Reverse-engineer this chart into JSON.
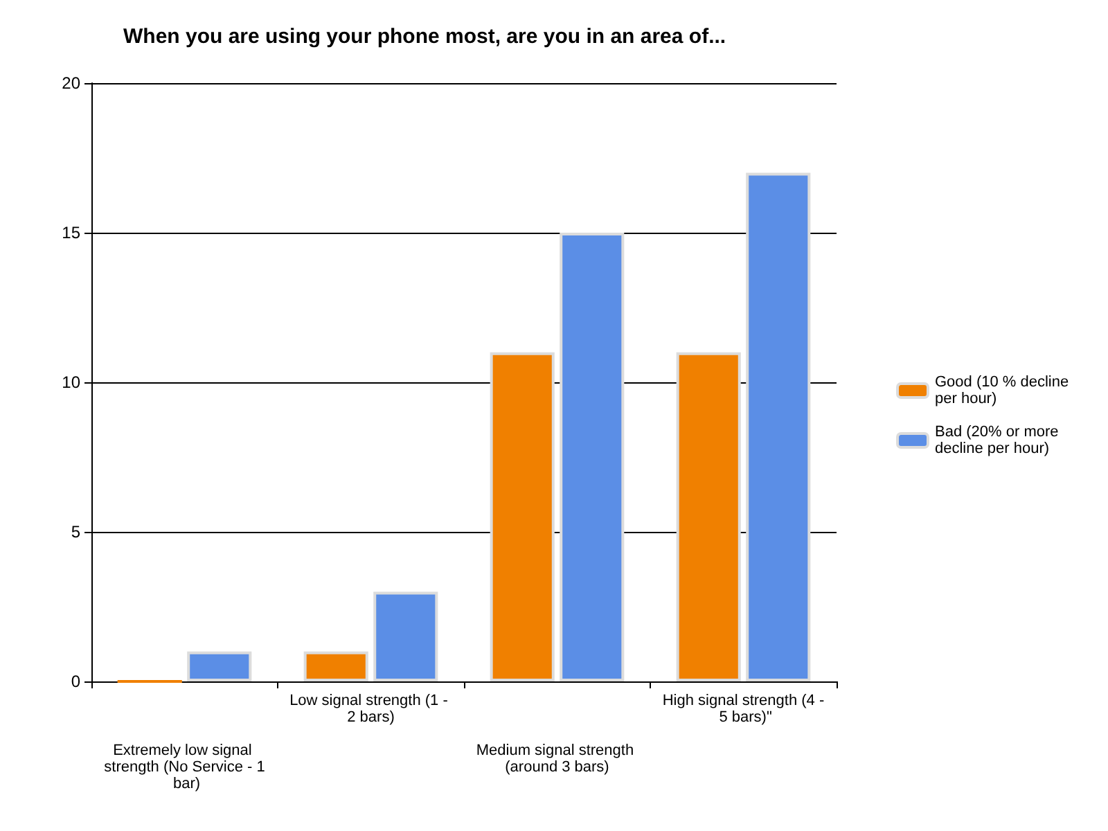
{
  "chart_data": {
    "type": "bar",
    "title": "When you are using your phone most, are you in an area of...",
    "categories": [
      "Extremely low signal strength (No Service - 1 bar)",
      "Low signal strength (1 - 2 bars)",
      "Medium signal strength (around 3 bars)",
      "High signal strength (4 - 5 bars)\""
    ],
    "series": [
      {
        "name": "Good (10 % decline per hour)",
        "color": "#f08000",
        "values": [
          0,
          1,
          11,
          11
        ]
      },
      {
        "name": "Bad (20% or more decline per hour)",
        "color": "#5b8ee6",
        "values": [
          1,
          3,
          15,
          17
        ]
      }
    ],
    "ylim": [
      0,
      20
    ],
    "yticks": [
      0,
      5,
      10,
      15,
      20
    ],
    "grid": "y",
    "legend": "right"
  }
}
